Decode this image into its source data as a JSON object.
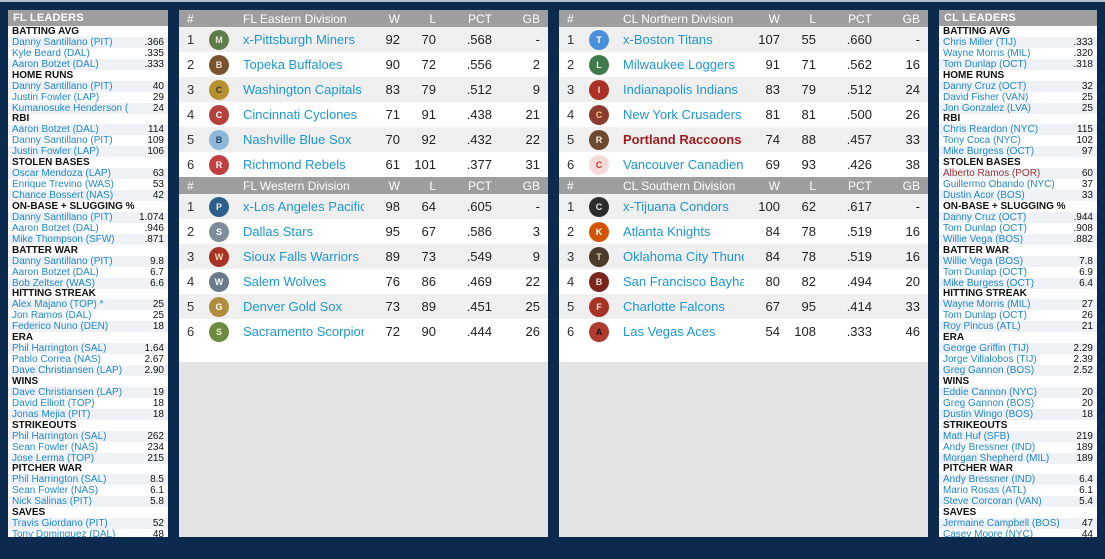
{
  "colors": {
    "background_navy": "#0c2a4e",
    "header_gray": "#9e9e9e",
    "link_blue": "#1e96d2",
    "leader_link_blue": "#2187c9",
    "highlight_red": "#9e1b1e",
    "row_alt_gray": "#efefef"
  },
  "titles": {
    "fl_leaders": "FL LEADERS",
    "cl_leaders": "CL LEADERS"
  },
  "standings_columns": {
    "rank": "#",
    "wins": "W",
    "losses": "L",
    "pct": "PCT",
    "gb": "GB"
  },
  "fl_leaders": [
    {
      "name": "BATTING AVG",
      "players": [
        {
          "name": "Danny Santillano (PIT)",
          "value": ".366"
        },
        {
          "name": "Kyle Beard (DAL)",
          "value": ".335"
        },
        {
          "name": "Aaron Botzet (DAL)",
          "value": ".333"
        }
      ]
    },
    {
      "name": "HOME RUNS",
      "players": [
        {
          "name": "Danny Santillano (PIT)",
          "value": "40"
        },
        {
          "name": "Justin Fowler (LAP)",
          "value": "29"
        },
        {
          "name": "Kumanosuke Henderson (",
          "value": "24"
        }
      ]
    },
    {
      "name": "RBI",
      "players": [
        {
          "name": "Aaron Botzet (DAL)",
          "value": "114"
        },
        {
          "name": "Danny Santillano (PIT)",
          "value": "109"
        },
        {
          "name": "Justin Fowler (LAP)",
          "value": "106"
        }
      ]
    },
    {
      "name": "STOLEN BASES",
      "players": [
        {
          "name": "Oscar Mendoza (LAP)",
          "value": "63"
        },
        {
          "name": "Enrique Trevino (WAS)",
          "value": "53"
        },
        {
          "name": "Chance Bossert (NAS)",
          "value": "42"
        }
      ]
    },
    {
      "name": "ON-BASE + SLUGGING %",
      "players": [
        {
          "name": "Danny Santillano (PIT)",
          "value": "1.074"
        },
        {
          "name": "Aaron Botzet (DAL)",
          "value": ".946"
        },
        {
          "name": "Mike Thompson (SFW)",
          "value": ".871"
        }
      ]
    },
    {
      "name": "BATTER WAR",
      "players": [
        {
          "name": "Danny Santillano (PIT)",
          "value": "9.8"
        },
        {
          "name": "Aaron Botzet (DAL)",
          "value": "6.7"
        },
        {
          "name": "Bob Zeltser (WAS)",
          "value": "6.6"
        }
      ]
    },
    {
      "name": "HITTING STREAK",
      "players": [
        {
          "name": "Alex Majano (TOP) *",
          "value": "25"
        },
        {
          "name": "Jon Ramos (DAL)",
          "value": "25"
        },
        {
          "name": "Federico Nuno (DEN)",
          "value": "18"
        }
      ]
    },
    {
      "name": "ERA",
      "players": [
        {
          "name": "Phil Harrington (SAL)",
          "value": "1.64"
        },
        {
          "name": "Pablo Correa (NAS)",
          "value": "2.67"
        },
        {
          "name": "Dave Christiansen (LAP)",
          "value": "2.90"
        }
      ]
    },
    {
      "name": "WINS",
      "players": [
        {
          "name": "Dave Christiansen (LAP)",
          "value": "19"
        },
        {
          "name": "David Elliott (TOP)",
          "value": "18"
        },
        {
          "name": "Jonas Mejia (PIT)",
          "value": "18"
        }
      ]
    },
    {
      "name": "STRIKEOUTS",
      "players": [
        {
          "name": "Phil Harrington (SAL)",
          "value": "262"
        },
        {
          "name": "Sean Fowler (NAS)",
          "value": "234"
        },
        {
          "name": "Jose Lerma (TOP)",
          "value": "215"
        }
      ]
    },
    {
      "name": "PITCHER WAR",
      "players": [
        {
          "name": "Phil Harrington (SAL)",
          "value": "8.5"
        },
        {
          "name": "Sean Fowler (NAS)",
          "value": "6.1"
        },
        {
          "name": "Nick Salinas (PIT)",
          "value": "5.8"
        }
      ]
    },
    {
      "name": "SAVES",
      "players": [
        {
          "name": "Travis Giordano (PIT)",
          "value": "52"
        },
        {
          "name": "Tony Dominguez (DAL)",
          "value": "48"
        },
        {
          "name": "Adrian McQuinn (TOP)",
          "value": "39"
        }
      ]
    }
  ],
  "cl_leaders": [
    {
      "name": "BATTING AVG",
      "players": [
        {
          "name": "Chris Miller (TIJ)",
          "value": ".333"
        },
        {
          "name": "Wayne Morris (MIL)",
          "value": ".320"
        },
        {
          "name": "Tom Dunlap (OCT)",
          "value": ".318"
        }
      ]
    },
    {
      "name": "HOME RUNS",
      "players": [
        {
          "name": "Danny Cruz (OCT)",
          "value": "32"
        },
        {
          "name": "David Fisher (VAN)",
          "value": "25"
        },
        {
          "name": "Jon Gonzalez (LVA)",
          "value": "25"
        }
      ]
    },
    {
      "name": "RBI",
      "players": [
        {
          "name": "Chris Reardon (NYC)",
          "value": "115"
        },
        {
          "name": "Tony Coca (NYC)",
          "value": "102"
        },
        {
          "name": "Mike Burgess (OCT)",
          "value": "97"
        }
      ]
    },
    {
      "name": "STOLEN BASES",
      "players": [
        {
          "name": "Alberto Ramos (POR)",
          "value": "60",
          "highlight": true
        },
        {
          "name": "Guillermo Obando (NYC)",
          "value": "37"
        },
        {
          "name": "Dustin Acor (BOS)",
          "value": "33"
        }
      ]
    },
    {
      "name": "ON-BASE + SLUGGING %",
      "players": [
        {
          "name": "Danny Cruz (OCT)",
          "value": ".944"
        },
        {
          "name": "Tom Dunlap (OCT)",
          "value": ".908"
        },
        {
          "name": "Willie Vega (BOS)",
          "value": ".882"
        }
      ]
    },
    {
      "name": "BATTER WAR",
      "players": [
        {
          "name": "Willie Vega (BOS)",
          "value": "7.8"
        },
        {
          "name": "Tom Dunlap (OCT)",
          "value": "6.9"
        },
        {
          "name": "Mike Burgess (OCT)",
          "value": "6.4"
        }
      ]
    },
    {
      "name": "HITTING STREAK",
      "players": [
        {
          "name": "Wayne Morris (MIL)",
          "value": "27"
        },
        {
          "name": "Tom Dunlap (OCT)",
          "value": "26"
        },
        {
          "name": "Roy Pincus (ATL)",
          "value": "21"
        }
      ]
    },
    {
      "name": "ERA",
      "players": [
        {
          "name": "George Griffin (TIJ)",
          "value": "2.29"
        },
        {
          "name": "Jorge Villalobos (TIJ)",
          "value": "2.39"
        },
        {
          "name": "Greg Gannon (BOS)",
          "value": "2.52"
        }
      ]
    },
    {
      "name": "WINS",
      "players": [
        {
          "name": "Eddie Cannon (NYC)",
          "value": "20"
        },
        {
          "name": "Greg Gannon (BOS)",
          "value": "20"
        },
        {
          "name": "Dustin Wingo (BOS)",
          "value": "18"
        }
      ]
    },
    {
      "name": "STRIKEOUTS",
      "players": [
        {
          "name": "Matt Huf (SFB)",
          "value": "219"
        },
        {
          "name": "Andy Bressner (IND)",
          "value": "189"
        },
        {
          "name": "Morgan Shepherd (MIL)",
          "value": "189"
        }
      ]
    },
    {
      "name": "PITCHER WAR",
      "players": [
        {
          "name": "Andy Bressner (IND)",
          "value": "6.4"
        },
        {
          "name": "Mario Rosas (ATL)",
          "value": "6.1"
        },
        {
          "name": "Steve Corcoran (VAN)",
          "value": "5.4"
        }
      ]
    },
    {
      "name": "SAVES",
      "players": [
        {
          "name": "Jermaine Campbell (BOS)",
          "value": "47"
        },
        {
          "name": "Casey Moore (NYC)",
          "value": "44"
        },
        {
          "name": "Dan McLin (SFB)",
          "value": "40"
        }
      ]
    }
  ],
  "fl_standings": [
    {
      "division": "FL Eastern Division",
      "rows": [
        {
          "rank": "1",
          "team": "x-Pittsburgh Miners",
          "w": "92",
          "l": "70",
          "pct": ".568",
          "gb": "-",
          "logo": {
            "bg": "#5d7d4b",
            "fg": "#e9e5d8",
            "text": "M"
          }
        },
        {
          "rank": "2",
          "team": "Topeka Buffaloes",
          "w": "90",
          "l": "72",
          "pct": ".556",
          "gb": "2",
          "logo": {
            "bg": "#7a5230",
            "fg": "#f0e6d2",
            "text": "B"
          }
        },
        {
          "rank": "3",
          "team": "Washington Capitals",
          "w": "83",
          "l": "79",
          "pct": ".512",
          "gb": "9",
          "logo": {
            "bg": "#b8912f",
            "fg": "#3a3a3a",
            "text": "C"
          }
        },
        {
          "rank": "4",
          "team": "Cincinnati Cyclones",
          "w": "71",
          "l": "91",
          "pct": ".438",
          "gb": "21",
          "logo": {
            "bg": "#b5413c",
            "fg": "#ffffff",
            "text": "C"
          }
        },
        {
          "rank": "5",
          "team": "Nashville Blue Sox",
          "w": "70",
          "l": "92",
          "pct": ".432",
          "gb": "22",
          "logo": {
            "bg": "#8fb8d8",
            "fg": "#2c4a66",
            "text": "B"
          }
        },
        {
          "rank": "6",
          "team": "Richmond Rebels",
          "w": "61",
          "l": "101",
          "pct": ".377",
          "gb": "31",
          "logo": {
            "bg": "#c04040",
            "fg": "#ffffff",
            "text": "R"
          }
        }
      ]
    },
    {
      "division": "FL Western Division",
      "rows": [
        {
          "rank": "1",
          "team": "x-Los Angeles Pacifics",
          "w": "98",
          "l": "64",
          "pct": ".605",
          "gb": "-",
          "logo": {
            "bg": "#2e5f8a",
            "fg": "#e8eef5",
            "text": "P"
          }
        },
        {
          "rank": "2",
          "team": "Dallas Stars",
          "w": "95",
          "l": "67",
          "pct": ".586",
          "gb": "3",
          "logo": {
            "bg": "#7f8c9a",
            "fg": "#ffffff",
            "text": "S"
          }
        },
        {
          "rank": "3",
          "team": "Sioux Falls Warriors",
          "w": "89",
          "l": "73",
          "pct": ".549",
          "gb": "9",
          "logo": {
            "bg": "#a93226",
            "fg": "#f2d8b0",
            "text": "W"
          }
        },
        {
          "rank": "4",
          "team": "Salem Wolves",
          "w": "76",
          "l": "86",
          "pct": ".469",
          "gb": "22",
          "logo": {
            "bg": "#6b7b8c",
            "fg": "#ffffff",
            "text": "W"
          }
        },
        {
          "rank": "5",
          "team": "Denver Gold Sox",
          "w": "73",
          "l": "89",
          "pct": ".451",
          "gb": "25",
          "logo": {
            "bg": "#b08d3e",
            "fg": "#ffffff",
            "text": "G"
          }
        },
        {
          "rank": "6",
          "team": "Sacramento Scorpions",
          "w": "72",
          "l": "90",
          "pct": ".444",
          "gb": "26",
          "logo": {
            "bg": "#6e8b3d",
            "fg": "#f0f0d8",
            "text": "S"
          }
        }
      ]
    }
  ],
  "cl_standings": [
    {
      "division": "CL Northern Division",
      "rows": [
        {
          "rank": "1",
          "team": "x-Boston Titans",
          "w": "107",
          "l": "55",
          "pct": ".660",
          "gb": "-",
          "logo": {
            "bg": "#4a90d9",
            "fg": "#ffffff",
            "text": "T"
          }
        },
        {
          "rank": "2",
          "team": "Milwaukee Loggers",
          "w": "91",
          "l": "71",
          "pct": ".562",
          "gb": "16",
          "logo": {
            "bg": "#3e7a4e",
            "fg": "#e6f0e0",
            "text": "L"
          }
        },
        {
          "rank": "3",
          "team": "Indianapolis Indians",
          "w": "83",
          "l": "79",
          "pct": ".512",
          "gb": "24",
          "logo": {
            "bg": "#a93226",
            "fg": "#f2e0c8",
            "text": "I"
          }
        },
        {
          "rank": "4",
          "team": "New York Crusaders",
          "w": "81",
          "l": "81",
          "pct": ".500",
          "gb": "26",
          "logo": {
            "bg": "#8e3b2f",
            "fg": "#e8c878",
            "text": "C"
          }
        },
        {
          "rank": "5",
          "team": "Portland Raccoons",
          "w": "74",
          "l": "88",
          "pct": ".457",
          "gb": "33",
          "highlight": true,
          "logo": {
            "bg": "#6b4a2f",
            "fg": "#f5efe5",
            "text": "R"
          }
        },
        {
          "rank": "6",
          "team": "Vancouver Canadiens",
          "w": "69",
          "l": "93",
          "pct": ".426",
          "gb": "38",
          "logo": {
            "bg": "#f5dada",
            "fg": "#c0392b",
            "text": "C"
          }
        }
      ]
    },
    {
      "division": "CL Southern Division",
      "rows": [
        {
          "rank": "1",
          "team": "x-Tijuana Condors",
          "w": "100",
          "l": "62",
          "pct": ".617",
          "gb": "-",
          "logo": {
            "bg": "#2c2c2c",
            "fg": "#e8e8e8",
            "text": "C"
          }
        },
        {
          "rank": "2",
          "team": "Atlanta Knights",
          "w": "84",
          "l": "78",
          "pct": ".519",
          "gb": "16",
          "logo": {
            "bg": "#d35400",
            "fg": "#ffffff",
            "text": "K"
          }
        },
        {
          "rank": "3",
          "team": "Oklahoma City Thunder",
          "w": "84",
          "l": "78",
          "pct": ".519",
          "gb": "16",
          "logo": {
            "bg": "#4a3b2a",
            "fg": "#e0d0b0",
            "text": "T"
          }
        },
        {
          "rank": "4",
          "team": "San Francisco Bayhawks",
          "w": "80",
          "l": "82",
          "pct": ".494",
          "gb": "20",
          "logo": {
            "bg": "#7b241c",
            "fg": "#f0e0d0",
            "text": "B"
          }
        },
        {
          "rank": "5",
          "team": "Charlotte Falcons",
          "w": "67",
          "l": "95",
          "pct": ".414",
          "gb": "33",
          "logo": {
            "bg": "#a93226",
            "fg": "#f5e5d5",
            "text": "F"
          }
        },
        {
          "rank": "6",
          "team": "Las Vegas Aces",
          "w": "54",
          "l": "108",
          "pct": ".333",
          "gb": "46",
          "logo": {
            "bg": "#b03a2e",
            "fg": "#1a1a1a",
            "text": "A"
          }
        }
      ]
    }
  ]
}
